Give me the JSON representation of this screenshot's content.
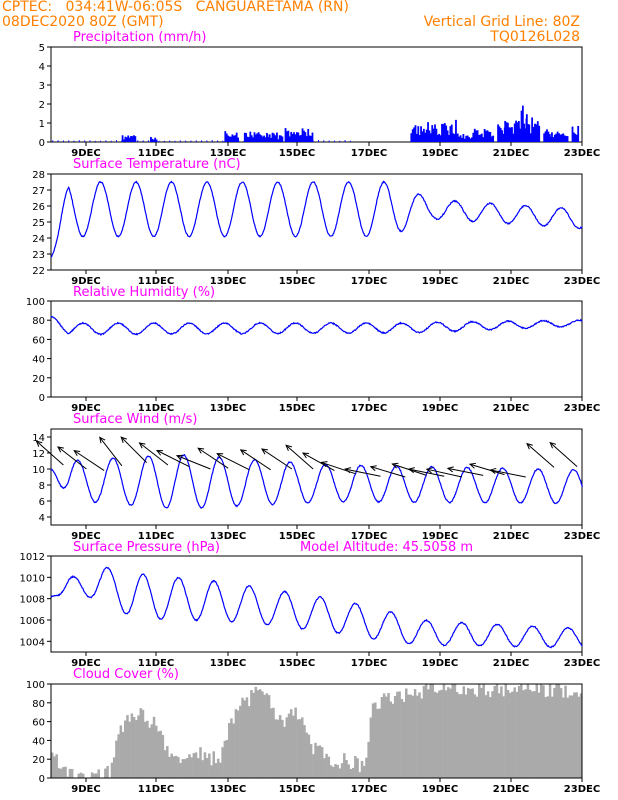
{
  "header": {
    "line1_left": "CPTEC:   034:41W-06:05S   CANGUARETAMA (RN)",
    "line2_left": "08DEC2020 80Z (GMT)",
    "line2_right": "Vertical Grid Line: 80Z",
    "line3_right": "TQ0126L028"
  },
  "colors": {
    "header": "#ff8000",
    "panel_title": "#ff00ff",
    "series": "#0000ff",
    "wind_arrow": "#000000",
    "cloud_fill": "#aaaaaa",
    "axis": "#000000"
  },
  "chart_data": [
    {
      "type": "bar",
      "title": "Precipitation (mm/h)",
      "ylim": [
        0,
        5
      ],
      "yticks": [
        "0",
        "1",
        "2",
        "3",
        "4",
        "5"
      ],
      "xticks": [
        "9DEC",
        "11DEC",
        "13DEC",
        "15DEC",
        "17DEC",
        "19DEC",
        "21DEC",
        "23DEC"
      ],
      "x_units": "days since 08DEC2020 08Z",
      "x_range": [
        0,
        15
      ],
      "events": [
        [
          2.2,
          0.4,
          0.4
        ],
        [
          2.9,
          0.2,
          0.3
        ],
        [
          5.1,
          0.4,
          0.6
        ],
        [
          5.9,
          0.9,
          0.7
        ],
        [
          6.3,
          0.5,
          0.5
        ],
        [
          7.0,
          0.8,
          0.8
        ],
        [
          10.5,
          0.1,
          0.1
        ],
        [
          10.8,
          1.3,
          1.2
        ],
        [
          11.6,
          0.6,
          0.5
        ],
        [
          12.2,
          0.6,
          0.9
        ],
        [
          12.75,
          0.3,
          1.1
        ],
        [
          13.05,
          0.5,
          1.4
        ],
        [
          13.3,
          0.3,
          2.3
        ],
        [
          13.6,
          0.4,
          1.5
        ],
        [
          14.0,
          0.2,
          0.9
        ],
        [
          14.3,
          0.6,
          0.7
        ],
        [
          14.8,
          0.2,
          1.1
        ]
      ]
    },
    {
      "type": "line",
      "title": "Surface Temperature (nC)",
      "ylim": [
        22,
        28
      ],
      "yticks": [
        "22",
        "23",
        "24",
        "25",
        "26",
        "27",
        "28"
      ],
      "xticks": [
        "9DEC",
        "11DEC",
        "13DEC",
        "15DEC",
        "17DEC",
        "19DEC",
        "21DEC",
        "23DEC"
      ],
      "x_range": [
        0,
        15
      ],
      "mean": 25.8,
      "start": 22.8,
      "phase": 0.15,
      "envelope": [
        [
          0,
          1.7
        ],
        [
          9.5,
          1.7
        ],
        [
          10.8,
          0.6
        ],
        [
          15,
          0.6
        ]
      ],
      "drift": [
        [
          0,
          0
        ],
        [
          10.8,
          0
        ],
        [
          15,
          -0.6
        ]
      ]
    },
    {
      "type": "line",
      "title": "Relative Humidity (%)",
      "ylim": [
        0,
        100
      ],
      "yticks": [
        "0",
        "20",
        "40",
        "60",
        "80",
        "100"
      ],
      "xticks": [
        "9DEC",
        "11DEC",
        "13DEC",
        "15DEC",
        "17DEC",
        "19DEC",
        "21DEC",
        "23DEC"
      ],
      "x_range": [
        0,
        15
      ],
      "mean": 72,
      "start": 84,
      "phase": 0.65,
      "envelope": [
        [
          0,
          6
        ],
        [
          11,
          5
        ],
        [
          15,
          3
        ]
      ],
      "drift": [
        [
          0,
          -1
        ],
        [
          10,
          0
        ],
        [
          15,
          5
        ]
      ]
    },
    {
      "type": "line",
      "title": "Surface Wind (m/s)",
      "ylim": [
        3,
        15
      ],
      "yticks": [
        "4",
        "6",
        "8",
        "10",
        "12",
        "14"
      ],
      "xticks": [
        "9DEC",
        "11DEC",
        "13DEC",
        "15DEC",
        "17DEC",
        "19DEC",
        "21DEC",
        "23DEC"
      ],
      "x_range": [
        0,
        15
      ],
      "mean": 8.6,
      "start": 10.0,
      "phase": 0.5,
      "envelope": [
        [
          0,
          2.3
        ],
        [
          3.5,
          3.4
        ],
        [
          8,
          2.3
        ],
        [
          15,
          2.1
        ]
      ],
      "drift": [
        [
          0,
          0
        ],
        [
          10,
          -0.5
        ],
        [
          15,
          -0.8
        ]
      ],
      "arrows": [
        [
          0.35,
          10.5,
          -0.9,
          0.8
        ],
        [
          1.0,
          10.0,
          -0.9,
          0.7
        ],
        [
          1.5,
          9.8,
          -0.9,
          0.6
        ],
        [
          2.0,
          10.4,
          -0.7,
          0.9
        ],
        [
          2.7,
          10.8,
          -0.8,
          0.8
        ],
        [
          3.3,
          10.5,
          -0.9,
          0.7
        ],
        [
          3.9,
          10.3,
          -1.0,
          0.5
        ],
        [
          4.5,
          10.0,
          -1.0,
          0.4
        ],
        [
          5.0,
          10.1,
          -0.9,
          0.6
        ],
        [
          5.6,
          9.9,
          -1.0,
          0.5
        ],
        [
          6.2,
          9.9,
          -0.9,
          0.6
        ],
        [
          6.8,
          10.0,
          -0.9,
          0.6
        ],
        [
          7.4,
          10.0,
          -0.8,
          0.7
        ],
        [
          8.0,
          9.8,
          -0.9,
          0.5
        ],
        [
          8.6,
          9.4,
          -0.9,
          0.3
        ],
        [
          9.3,
          9.1,
          -1.0,
          0.2
        ],
        [
          10.0,
          9.0,
          -1.0,
          0.3
        ],
        [
          10.6,
          9.2,
          -0.9,
          0.3
        ],
        [
          11.1,
          9.1,
          -1.0,
          0.2
        ],
        [
          11.6,
          9.0,
          -0.9,
          0.2
        ],
        [
          12.2,
          9.2,
          -1.0,
          0.2
        ],
        [
          12.8,
          9.3,
          -1.0,
          0.3
        ],
        [
          13.4,
          9.0,
          -1.0,
          0.2
        ],
        [
          14.2,
          10.2,
          -0.8,
          0.7
        ],
        [
          14.85,
          10.3,
          -0.9,
          0.8
        ]
      ]
    },
    {
      "type": "line",
      "title": "Surface Pressure (hPa)",
      "subtitle": "Model Altitude: 45.5058 m",
      "ylim": [
        1003,
        1012
      ],
      "yticks": [
        "1004",
        "1006",
        "1008",
        "1010",
        "1012"
      ],
      "xticks": [
        "9DEC",
        "11DEC",
        "13DEC",
        "15DEC",
        "17DEC",
        "19DEC",
        "21DEC",
        "23DEC"
      ],
      "x_range": [
        0,
        15
      ],
      "mean": 1008.9,
      "start": 1008.2,
      "phase": 0.35,
      "envelope": [
        [
          0,
          0.5
        ],
        [
          1.5,
          1.5
        ],
        [
          2.5,
          2.1
        ],
        [
          6,
          1.7
        ],
        [
          9,
          1.5
        ],
        [
          11,
          1.1
        ],
        [
          15,
          0.9
        ]
      ],
      "drift": [
        [
          0,
          0
        ],
        [
          1.5,
          0.6
        ],
        [
          2.2,
          -0.6
        ],
        [
          5,
          -1.2
        ],
        [
          8,
          -2.5
        ],
        [
          10.5,
          -4.1
        ],
        [
          15,
          -4.6
        ]
      ]
    },
    {
      "type": "area",
      "title": "Cloud Cover (%)",
      "ylim": [
        0,
        100
      ],
      "yticks": [
        "0",
        "20",
        "40",
        "60",
        "80",
        "100"
      ],
      "xticks": [
        "9DEC",
        "11DEC",
        "13DEC",
        "15DEC",
        "17DEC",
        "19DEC",
        "21DEC",
        "23DEC"
      ],
      "x_range": [
        0,
        15
      ],
      "profile": [
        [
          0,
          20
        ],
        [
          0.3,
          15
        ],
        [
          0.6,
          5
        ],
        [
          1.0,
          2
        ],
        [
          1.5,
          2
        ],
        [
          1.7,
          10
        ],
        [
          1.9,
          40
        ],
        [
          2.1,
          65
        ],
        [
          2.4,
          70
        ],
        [
          2.7,
          65
        ],
        [
          3.0,
          55
        ],
        [
          3.3,
          30
        ],
        [
          3.6,
          25
        ],
        [
          3.9,
          20
        ],
        [
          4.2,
          25
        ],
        [
          4.5,
          20
        ],
        [
          4.8,
          25
        ],
        [
          5.0,
          50
        ],
        [
          5.3,
          80
        ],
        [
          5.6,
          85
        ],
        [
          5.9,
          90
        ],
        [
          6.2,
          80
        ],
        [
          6.5,
          60
        ],
        [
          6.8,
          70
        ],
        [
          7.1,
          65
        ],
        [
          7.4,
          30
        ],
        [
          7.7,
          25
        ],
        [
          8.0,
          20
        ],
        [
          8.3,
          18
        ],
        [
          8.6,
          15
        ],
        [
          8.9,
          15
        ],
        [
          9.1,
          80
        ],
        [
          9.5,
          85
        ],
        [
          10.0,
          88
        ],
        [
          10.4,
          92
        ],
        [
          10.8,
          94
        ],
        [
          11.5,
          95
        ],
        [
          12.5,
          95
        ],
        [
          13.5,
          96
        ],
        [
          14.5,
          94
        ],
        [
          15,
          92
        ]
      ]
    }
  ]
}
